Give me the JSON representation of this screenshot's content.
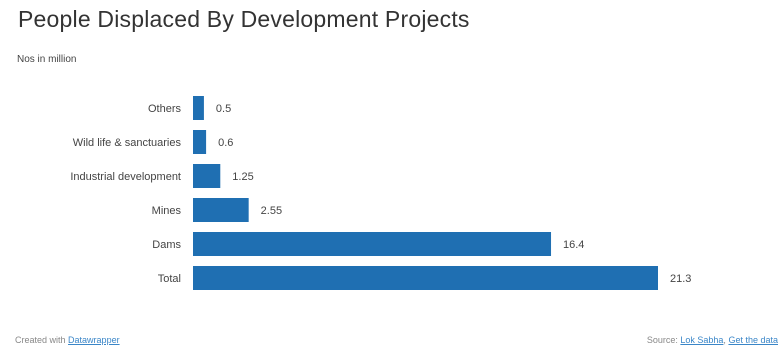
{
  "chart_data": {
    "type": "bar",
    "orientation": "horizontal",
    "title": "People Displaced By Development Projects",
    "subtitle": "Nos in million",
    "categories": [
      "Others",
      "Wild life & sanctuaries",
      "Industrial development",
      "Mines",
      "Dams",
      "Total"
    ],
    "values": [
      0.5,
      0.6,
      1.25,
      2.55,
      16.4,
      21.3
    ],
    "value_labels": [
      "0.5",
      "0.6",
      "1.25",
      "2.55",
      "16.4",
      "21.3"
    ],
    "xlim": [
      0,
      21.3
    ],
    "bar_color": "#1f6fb2",
    "grid": false,
    "legend": "none"
  },
  "footer": {
    "created_prefix": "Created with",
    "created_link": "Datawrapper",
    "source_prefix": "Source:",
    "source_link": "Lok Sabha",
    "separator": ",",
    "get_data_link": "Get the data"
  }
}
